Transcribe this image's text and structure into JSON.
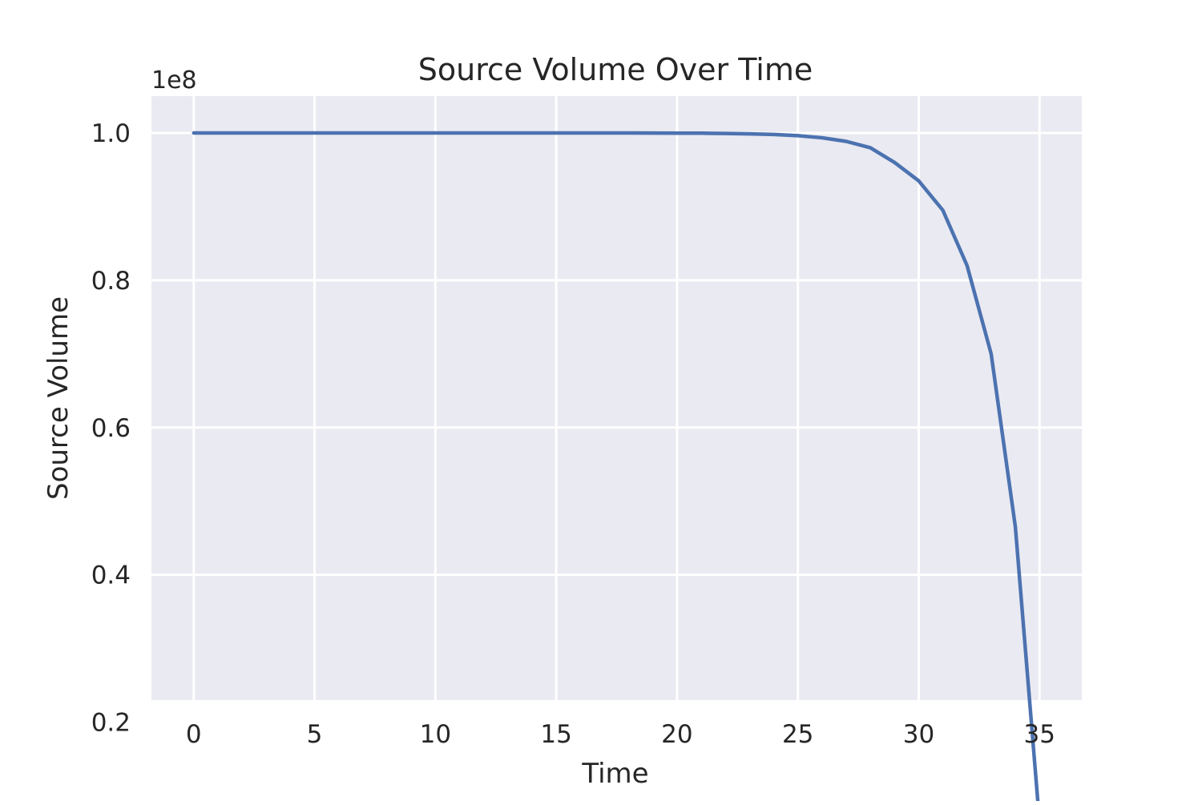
{
  "chart_data": {
    "type": "line",
    "title": "Source Volume Over Time",
    "xlabel": "Time",
    "ylabel": "Source Volume",
    "y_offset_label": "1e8",
    "y_scale_factor": 100000000,
    "xlim": [
      -1.75,
      36.75
    ],
    "ylim": [
      2.3,
      10.5
    ],
    "x_ticks": [
      0,
      5,
      10,
      15,
      20,
      25,
      30,
      35
    ],
    "x_tick_labels": [
      "0",
      "5",
      "10",
      "15",
      "20",
      "25",
      "30",
      "35"
    ],
    "y_ticks": [
      2,
      4,
      6,
      8,
      10
    ],
    "y_tick_labels": [
      "0.2",
      "0.4",
      "0.6",
      "0.8",
      "1.0"
    ],
    "grid": true,
    "colors": {
      "background": "#eaeaf2",
      "grid": "#ffffff",
      "line": "#4c72b0",
      "text": "#262626"
    },
    "series": [
      {
        "x": [
          0,
          1,
          2,
          3,
          4,
          5,
          6,
          7,
          8,
          9,
          10,
          11,
          12,
          13,
          14,
          15,
          16,
          17,
          18,
          19,
          20,
          21,
          22,
          23,
          24,
          25,
          26,
          27,
          28,
          29,
          30,
          31,
          32,
          33,
          34,
          35
        ],
        "y": [
          10.0,
          10.0,
          10.0,
          10.0,
          10.0,
          10.0,
          10.0,
          10.0,
          10.0,
          10.0,
          10.0,
          10.0,
          10.0,
          10.0,
          10.0,
          10.0,
          10.0,
          10.0,
          10.0,
          9.999,
          9.998,
          9.996,
          9.993,
          9.988,
          9.979,
          9.963,
          9.935,
          9.885,
          9.8,
          9.6,
          9.35,
          8.95,
          8.2,
          7.0,
          4.65,
          0.65
        ]
      }
    ]
  }
}
